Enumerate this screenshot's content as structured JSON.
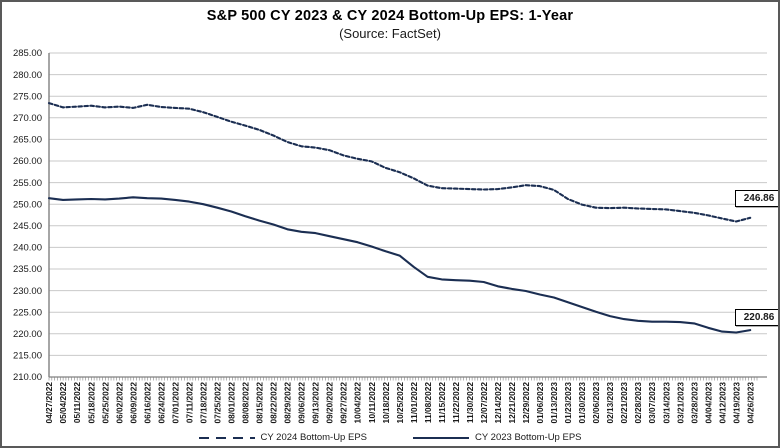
{
  "chart_data": {
    "type": "line",
    "title": "S&P 500 CY 2023 & CY 2024 Bottom-Up EPS: 1-Year",
    "subtitle": "(Source: FactSet)",
    "ylim": [
      210,
      285
    ],
    "ytick_step": 5,
    "y_ticks": [
      "285.00",
      "280.00",
      "275.00",
      "270.00",
      "265.00",
      "260.00",
      "255.00",
      "250.00",
      "245.00",
      "240.00",
      "235.00",
      "230.00",
      "225.00",
      "220.00",
      "215.00",
      "210.00"
    ],
    "x_labels": [
      "04/27/2022",
      "05/04/2022",
      "05/11/2022",
      "05/18/2022",
      "05/25/2022",
      "06/02/2022",
      "06/09/2022",
      "06/16/2022",
      "06/24/2022",
      "07/01/2022",
      "07/11/2022",
      "07/18/2022",
      "07/25/2022",
      "08/01/2022",
      "08/08/2022",
      "08/15/2022",
      "08/22/2022",
      "08/29/2022",
      "09/06/2022",
      "09/13/2022",
      "09/20/2022",
      "09/27/2022",
      "10/04/2022",
      "10/11/2022",
      "10/18/2022",
      "10/25/2022",
      "11/01/2022",
      "11/08/2022",
      "11/15/2022",
      "11/22/2022",
      "11/30/2022",
      "12/07/2022",
      "12/14/2022",
      "12/21/2022",
      "12/29/2022",
      "01/06/2023",
      "01/13/2023",
      "01/23/2023",
      "01/30/2023",
      "02/06/2023",
      "02/13/2023",
      "02/21/2023",
      "02/28/2023",
      "03/07/2023",
      "03/14/2023",
      "03/21/2023",
      "03/28/2023",
      "04/04/2023",
      "04/12/2023",
      "04/19/2023",
      "04/26/2023"
    ],
    "grid": "horizontal",
    "legend_position": "bottom",
    "series": [
      {
        "name": "CY 2024 Bottom-Up EPS",
        "style": "dashed",
        "end_label": "246.86",
        "values": [
          273.4,
          272.4,
          272.6,
          272.8,
          272.4,
          272.6,
          272.3,
          273.0,
          272.5,
          272.3,
          272.1,
          271.3,
          270.2,
          269.1,
          268.2,
          267.2,
          265.9,
          264.4,
          263.4,
          263.1,
          262.5,
          261.3,
          260.5,
          259.9,
          258.4,
          257.4,
          256.0,
          254.3,
          253.7,
          253.6,
          253.5,
          253.4,
          253.5,
          253.9,
          254.4,
          254.2,
          253.3,
          251.2,
          249.9,
          249.2,
          249.1,
          249.2,
          249.0,
          248.9,
          248.8,
          248.4,
          248.0,
          247.4,
          246.7,
          246.0,
          246.86
        ]
      },
      {
        "name": "CY 2023 Bottom-Up EPS",
        "style": "solid",
        "end_label": "220.86",
        "values": [
          251.4,
          251.0,
          251.1,
          251.2,
          251.1,
          251.3,
          251.6,
          251.4,
          251.3,
          251.0,
          250.6,
          250.0,
          249.2,
          248.3,
          247.2,
          246.2,
          245.3,
          244.2,
          243.6,
          243.3,
          242.6,
          241.9,
          241.2,
          240.2,
          239.1,
          238.1,
          235.5,
          233.2,
          232.6,
          232.4,
          232.3,
          232.0,
          231.0,
          230.4,
          229.9,
          229.1,
          228.4,
          227.3,
          226.2,
          225.1,
          224.1,
          223.4,
          223.0,
          222.8,
          222.8,
          222.7,
          222.4,
          221.4,
          220.5,
          220.3,
          220.86
        ]
      }
    ],
    "colors": {
      "line": "#1b2e52",
      "grid": "#c9c9c9",
      "axis": "#808080",
      "text": "#1a1a1a"
    }
  }
}
